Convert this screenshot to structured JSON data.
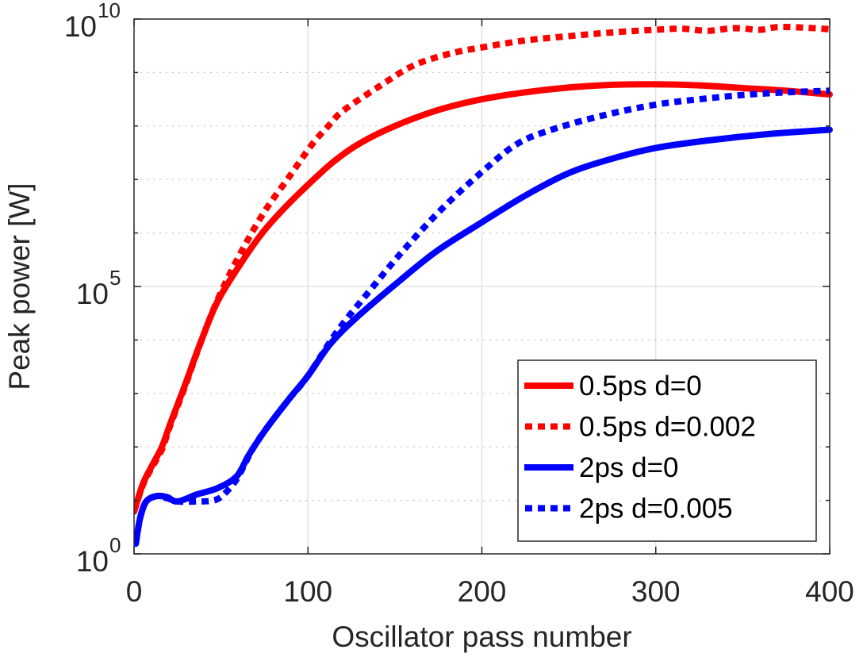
{
  "chart_data": {
    "type": "line",
    "title": "",
    "xlabel": "Oscillator pass number",
    "ylabel": "Peak power [W]",
    "xscale": "linear",
    "yscale": "log",
    "xlim": [
      0,
      400
    ],
    "ylim": [
      1,
      10000000000
    ],
    "x_ticks": [
      0,
      100,
      200,
      300,
      400
    ],
    "x_tick_labels": [
      "0",
      "100",
      "200",
      "300",
      "400"
    ],
    "y_major_ticks": [
      {
        "value": 1,
        "base": "10",
        "exp": "0"
      },
      {
        "value": 100000,
        "base": "10",
        "exp": "5"
      },
      {
        "value": 10000000000,
        "base": "10",
        "exp": "10"
      }
    ],
    "y_minor_ticks_decades": [
      1,
      2,
      3,
      4,
      6,
      7,
      8,
      9
    ],
    "grid": {
      "x_major": true,
      "y_major": true,
      "y_minor": true
    },
    "legend": {
      "position": "bottom-right",
      "entries": [
        {
          "label": "0.5ps d=0",
          "color": "#ff0000",
          "style": "solid"
        },
        {
          "label": "0.5ps d=0.002",
          "color": "#ff0000",
          "style": "dotted"
        },
        {
          "label": "2ps d=0",
          "color": "#0000ff",
          "style": "solid"
        },
        {
          "label": "2ps d=0.005",
          "color": "#0000ff",
          "style": "dotted"
        }
      ]
    },
    "series": [
      {
        "name": "0.5ps d=0",
        "color": "#ff0000",
        "style": "solid",
        "x": [
          0,
          5,
          10,
          16,
          21,
          29,
          38,
          48,
          62,
          74,
          86,
          100,
          115,
          130,
          150,
          175,
          200,
          225,
          250,
          275,
          300,
          325,
          350,
          375,
          400
        ],
        "log10_y": [
          0.79,
          1.3,
          1.63,
          2.0,
          2.45,
          3.13,
          3.93,
          4.72,
          5.46,
          6.01,
          6.45,
          6.9,
          7.34,
          7.68,
          8.0,
          8.3,
          8.5,
          8.63,
          8.72,
          8.77,
          8.78,
          8.76,
          8.71,
          8.66,
          8.59
        ]
      },
      {
        "name": "0.5ps d=0.002",
        "color": "#ff0000",
        "style": "dotted",
        "x": [
          0,
          5,
          10,
          16,
          21,
          29,
          38,
          48,
          61,
          75,
          89,
          102,
          112,
          120,
          140,
          160,
          180,
          200,
          225,
          250,
          275,
          300,
          315,
          330,
          345,
          360,
          370,
          385,
          400
        ],
        "log10_y": [
          0.79,
          1.28,
          1.6,
          1.95,
          2.42,
          3.1,
          3.92,
          4.75,
          5.61,
          6.4,
          7.04,
          7.64,
          8.01,
          8.28,
          8.72,
          9.12,
          9.34,
          9.47,
          9.6,
          9.68,
          9.75,
          9.8,
          9.82,
          9.78,
          9.83,
          9.8,
          9.85,
          9.84,
          9.81
        ]
      },
      {
        "name": "2ps d=0",
        "color": "#0000ff",
        "style": "solid",
        "x": [
          1,
          3.5,
          7,
          13,
          19,
          25,
          36,
          48,
          59,
          66,
          76,
          89,
          100,
          113,
          128,
          151,
          174,
          200,
          225,
          250,
          275,
          300,
          330,
          365,
          400
        ],
        "log10_y": [
          0.19,
          0.67,
          0.98,
          1.08,
          1.06,
          0.98,
          1.11,
          1.23,
          1.45,
          1.85,
          2.34,
          2.89,
          3.33,
          3.93,
          4.42,
          5.06,
          5.66,
          6.2,
          6.7,
          7.12,
          7.39,
          7.59,
          7.73,
          7.85,
          7.93
        ]
      },
      {
        "name": "2ps d=0.005",
        "color": "#0000ff",
        "style": "dotted",
        "x": [
          1,
          3.5,
          7,
          13,
          19,
          25,
          36,
          47,
          54,
          60,
          68,
          76,
          89,
          100,
          117,
          136,
          155,
          177,
          200,
          220,
          240,
          270,
          300,
          325,
          350,
          375,
          400
        ],
        "log10_y": [
          0.19,
          0.67,
          0.98,
          1.08,
          1.04,
          0.98,
          0.98,
          1.01,
          1.19,
          1.45,
          1.95,
          2.34,
          2.89,
          3.33,
          4.17,
          4.94,
          5.68,
          6.45,
          7.14,
          7.66,
          7.93,
          8.2,
          8.4,
          8.5,
          8.58,
          8.63,
          8.66
        ]
      }
    ]
  }
}
